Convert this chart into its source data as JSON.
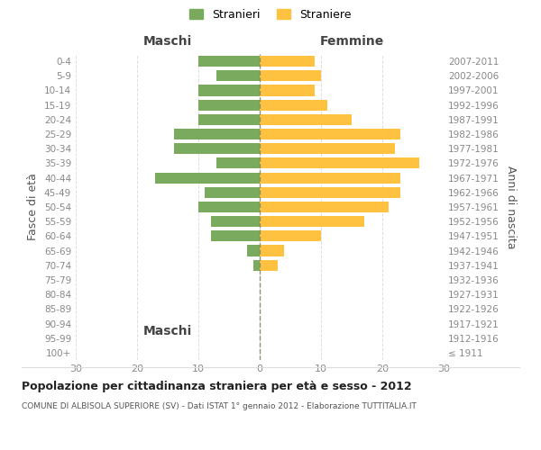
{
  "age_groups": [
    "100+",
    "95-99",
    "90-94",
    "85-89",
    "80-84",
    "75-79",
    "70-74",
    "65-69",
    "60-64",
    "55-59",
    "50-54",
    "45-49",
    "40-44",
    "35-39",
    "30-34",
    "25-29",
    "20-24",
    "15-19",
    "10-14",
    "5-9",
    "0-4"
  ],
  "birth_years": [
    "≤ 1911",
    "1912-1916",
    "1917-1921",
    "1922-1926",
    "1927-1931",
    "1932-1936",
    "1937-1941",
    "1942-1946",
    "1947-1951",
    "1952-1956",
    "1957-1961",
    "1962-1966",
    "1967-1971",
    "1972-1976",
    "1977-1981",
    "1982-1986",
    "1987-1991",
    "1992-1996",
    "1997-2001",
    "2002-2006",
    "2007-2011"
  ],
  "males": [
    0,
    0,
    0,
    0,
    0,
    0,
    1,
    2,
    8,
    8,
    10,
    9,
    17,
    7,
    14,
    14,
    10,
    10,
    10,
    7,
    10
  ],
  "females": [
    0,
    0,
    0,
    0,
    0,
    0,
    3,
    4,
    10,
    17,
    21,
    23,
    23,
    26,
    22,
    23,
    15,
    11,
    9,
    10,
    9
  ],
  "male_color": "#7aaa5e",
  "female_color": "#ffc140",
  "title": "Popolazione per cittadinanza straniera per età e sesso - 2012",
  "subtitle": "COMUNE DI ALBISOLA SUPERIORE (SV) - Dati ISTAT 1° gennaio 2012 - Elaborazione TUTTITALIA.IT",
  "xlabel_left": "Maschi",
  "xlabel_right": "Femmine",
  "ylabel_left": "Fasce di età",
  "ylabel_right": "Anni di nascita",
  "legend_stranieri": "Stranieri",
  "legend_straniere": "Straniere",
  "xlim": 30,
  "background_color": "#ffffff",
  "grid_color": "#dddddd",
  "axis_label_color": "#555555",
  "tick_color": "#888888"
}
